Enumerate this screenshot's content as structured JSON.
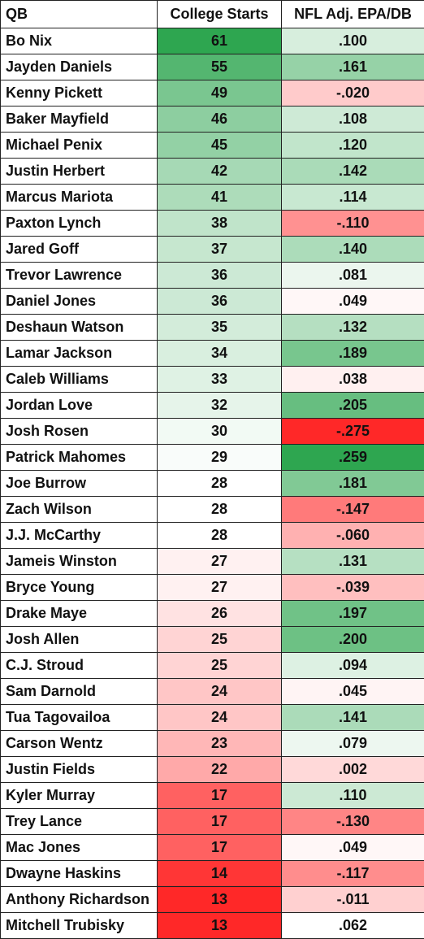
{
  "table": {
    "header": [
      "QB",
      "College Starts",
      "NFL Adj. EPA/DB"
    ],
    "rows": [
      [
        "Bo Nix",
        61,
        ".100"
      ],
      [
        "Jayden Daniels",
        55,
        ".161"
      ],
      [
        "Kenny Pickett",
        49,
        "-.020"
      ],
      [
        "Baker Mayfield",
        46,
        ".108"
      ],
      [
        "Michael Penix",
        45,
        ".120"
      ],
      [
        "Justin Herbert",
        42,
        ".142"
      ],
      [
        "Marcus Mariota",
        41,
        ".114"
      ],
      [
        "Paxton Lynch",
        38,
        "-.110"
      ],
      [
        "Jared Goff",
        37,
        ".140"
      ],
      [
        "Trevor Lawrence",
        36,
        ".081"
      ],
      [
        "Daniel Jones",
        36,
        ".049"
      ],
      [
        "Deshaun Watson",
        35,
        ".132"
      ],
      [
        "Lamar Jackson",
        34,
        ".189"
      ],
      [
        "Caleb Williams",
        33,
        ".038"
      ],
      [
        "Jordan Love",
        32,
        ".205"
      ],
      [
        "Josh Rosen",
        30,
        "-.275"
      ],
      [
        "Patrick Mahomes",
        29,
        ".259"
      ],
      [
        "Joe Burrow",
        28,
        ".181"
      ],
      [
        "Zach Wilson",
        28,
        "-.147"
      ],
      [
        "J.J. McCarthy",
        28,
        "-.060"
      ],
      [
        "Jameis Winston",
        27,
        ".131"
      ],
      [
        "Bryce Young",
        27,
        "-.039"
      ],
      [
        "Drake Maye",
        26,
        ".197"
      ],
      [
        "Josh Allen",
        25,
        ".200"
      ],
      [
        "C.J. Stroud",
        25,
        ".094"
      ],
      [
        "Sam Darnold",
        24,
        ".045"
      ],
      [
        "Tua Tagovailoa",
        24,
        ".141"
      ],
      [
        "Carson Wentz",
        23,
        ".079"
      ],
      [
        "Justin Fields",
        22,
        ".002"
      ],
      [
        "Kyler Murray",
        17,
        ".110"
      ],
      [
        "Trey Lance",
        17,
        "-.130"
      ],
      [
        "Mac Jones",
        17,
        ".049"
      ],
      [
        "Dwayne Haskins",
        14,
        "-.117"
      ],
      [
        "Anthony Richardson",
        13,
        "-.011"
      ],
      [
        "Mitchell Trubisky",
        13,
        ".062"
      ]
    ]
  }
}
